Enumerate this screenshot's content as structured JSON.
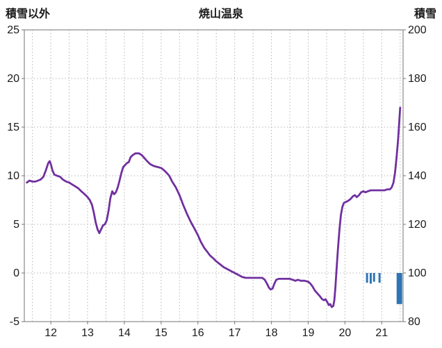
{
  "header": {
    "left_axis_title": "積雪以外",
    "title": "焼山温泉",
    "right_axis_title": "積雪"
  },
  "colors": {
    "background": "#ffffff",
    "text": "#1a1a1a",
    "grid": "#b3b3b3",
    "border": "#8a8a8a",
    "line": "#7030a0",
    "bar": "#2e75b6"
  },
  "chart_data": {
    "type": "line",
    "title": "焼山温泉",
    "left_axis": {
      "label": "積雪以外",
      "range": [
        -5,
        25
      ],
      "ticks": [
        25,
        20,
        15,
        10,
        5,
        0,
        -5
      ]
    },
    "right_axis": {
      "label": "積雪",
      "range": [
        80,
        200
      ],
      "ticks": [
        200,
        180,
        160,
        140,
        120,
        100,
        80
      ]
    },
    "x_axis": {
      "range": [
        11.28,
        21.58
      ],
      "ticks": [
        12,
        13,
        14,
        15,
        16,
        17,
        18,
        19,
        20,
        21
      ],
      "grid_step": 0.5
    },
    "grid": true,
    "series": [
      {
        "name": "observed-line",
        "axis": "left",
        "color": "#7030a0",
        "points": [
          [
            11.35,
            9.3
          ],
          [
            11.42,
            9.5
          ],
          [
            11.5,
            9.4
          ],
          [
            11.58,
            9.4
          ],
          [
            11.65,
            9.5
          ],
          [
            11.72,
            9.6
          ],
          [
            11.8,
            9.9
          ],
          [
            11.87,
            10.6
          ],
          [
            11.93,
            11.3
          ],
          [
            11.97,
            11.5
          ],
          [
            12.0,
            11.2
          ],
          [
            12.05,
            10.5
          ],
          [
            12.1,
            10.1
          ],
          [
            12.17,
            10.0
          ],
          [
            12.25,
            9.9
          ],
          [
            12.33,
            9.6
          ],
          [
            12.42,
            9.4
          ],
          [
            12.5,
            9.3
          ],
          [
            12.58,
            9.1
          ],
          [
            12.67,
            8.9
          ],
          [
            12.75,
            8.7
          ],
          [
            12.83,
            8.4
          ],
          [
            12.92,
            8.1
          ],
          [
            13.0,
            7.8
          ],
          [
            13.06,
            7.5
          ],
          [
            13.12,
            7.0
          ],
          [
            13.17,
            6.2
          ],
          [
            13.22,
            5.2
          ],
          [
            13.27,
            4.5
          ],
          [
            13.32,
            4.1
          ],
          [
            13.37,
            4.5
          ],
          [
            13.42,
            4.9
          ],
          [
            13.47,
            5.0
          ],
          [
            13.52,
            5.4
          ],
          [
            13.57,
            6.4
          ],
          [
            13.62,
            7.7
          ],
          [
            13.67,
            8.4
          ],
          [
            13.72,
            8.1
          ],
          [
            13.77,
            8.3
          ],
          [
            13.82,
            8.8
          ],
          [
            13.87,
            9.5
          ],
          [
            13.92,
            10.3
          ],
          [
            13.97,
            10.9
          ],
          [
            14.02,
            11.1
          ],
          [
            14.07,
            11.3
          ],
          [
            14.12,
            11.4
          ],
          [
            14.17,
            11.9
          ],
          [
            14.22,
            12.1
          ],
          [
            14.3,
            12.3
          ],
          [
            14.4,
            12.3
          ],
          [
            14.48,
            12.1
          ],
          [
            14.55,
            11.8
          ],
          [
            14.62,
            11.5
          ],
          [
            14.7,
            11.2
          ],
          [
            14.8,
            11.0
          ],
          [
            14.9,
            10.9
          ],
          [
            15.0,
            10.8
          ],
          [
            15.07,
            10.6
          ],
          [
            15.15,
            10.3
          ],
          [
            15.22,
            10.0
          ],
          [
            15.3,
            9.4
          ],
          [
            15.4,
            8.8
          ],
          [
            15.5,
            8.0
          ],
          [
            15.6,
            7.0
          ],
          [
            15.7,
            6.1
          ],
          [
            15.8,
            5.3
          ],
          [
            15.9,
            4.6
          ],
          [
            16.0,
            3.9
          ],
          [
            16.08,
            3.2
          ],
          [
            16.17,
            2.6
          ],
          [
            16.25,
            2.2
          ],
          [
            16.33,
            1.8
          ],
          [
            16.42,
            1.5
          ],
          [
            16.5,
            1.2
          ],
          [
            16.6,
            0.9
          ],
          [
            16.7,
            0.6
          ],
          [
            16.8,
            0.4
          ],
          [
            16.9,
            0.2
          ],
          [
            17.0,
            0.0
          ],
          [
            17.1,
            -0.2
          ],
          [
            17.2,
            -0.4
          ],
          [
            17.3,
            -0.5
          ],
          [
            17.45,
            -0.5
          ],
          [
            17.6,
            -0.5
          ],
          [
            17.75,
            -0.5
          ],
          [
            17.82,
            -0.7
          ],
          [
            17.88,
            -1.1
          ],
          [
            17.93,
            -1.5
          ],
          [
            17.98,
            -1.7
          ],
          [
            18.03,
            -1.6
          ],
          [
            18.08,
            -1.1
          ],
          [
            18.13,
            -0.7
          ],
          [
            18.2,
            -0.6
          ],
          [
            18.3,
            -0.6
          ],
          [
            18.4,
            -0.6
          ],
          [
            18.5,
            -0.6
          ],
          [
            18.58,
            -0.7
          ],
          [
            18.65,
            -0.8
          ],
          [
            18.72,
            -0.7
          ],
          [
            18.8,
            -0.8
          ],
          [
            18.9,
            -0.8
          ],
          [
            19.0,
            -0.9
          ],
          [
            19.06,
            -1.1
          ],
          [
            19.12,
            -1.4
          ],
          [
            19.18,
            -1.8
          ],
          [
            19.25,
            -2.1
          ],
          [
            19.32,
            -2.4
          ],
          [
            19.38,
            -2.7
          ],
          [
            19.43,
            -2.8
          ],
          [
            19.47,
            -2.7
          ],
          [
            19.52,
            -3.0
          ],
          [
            19.56,
            -3.3
          ],
          [
            19.6,
            -3.2
          ],
          [
            19.64,
            -3.5
          ],
          [
            19.68,
            -3.4
          ],
          [
            19.71,
            -2.8
          ],
          [
            19.74,
            -1.5
          ],
          [
            19.77,
            0.3
          ],
          [
            19.81,
            2.5
          ],
          [
            19.85,
            4.5
          ],
          [
            19.89,
            6.0
          ],
          [
            19.93,
            6.8
          ],
          [
            19.97,
            7.2
          ],
          [
            20.02,
            7.3
          ],
          [
            20.08,
            7.4
          ],
          [
            20.15,
            7.6
          ],
          [
            20.22,
            7.9
          ],
          [
            20.27,
            8.0
          ],
          [
            20.32,
            7.8
          ],
          [
            20.38,
            8.0
          ],
          [
            20.44,
            8.3
          ],
          [
            20.5,
            8.4
          ],
          [
            20.56,
            8.3
          ],
          [
            20.62,
            8.4
          ],
          [
            20.7,
            8.5
          ],
          [
            20.8,
            8.5
          ],
          [
            20.9,
            8.5
          ],
          [
            21.0,
            8.5
          ],
          [
            21.08,
            8.5
          ],
          [
            21.15,
            8.6
          ],
          [
            21.22,
            8.6
          ],
          [
            21.27,
            8.8
          ],
          [
            21.32,
            9.3
          ],
          [
            21.36,
            10.3
          ],
          [
            21.4,
            11.8
          ],
          [
            21.44,
            13.5
          ],
          [
            21.47,
            15.2
          ],
          [
            21.5,
            17.0
          ]
        ]
      }
    ],
    "bars": {
      "name": "precip-bars",
      "axis": "left",
      "color": "#2e75b6",
      "items": [
        {
          "x": 20.6,
          "top": 0,
          "bottom": -1.0,
          "width": 3
        },
        {
          "x": 20.7,
          "top": 0,
          "bottom": -1.1,
          "width": 3
        },
        {
          "x": 20.79,
          "top": 0,
          "bottom": -0.9,
          "width": 3
        },
        {
          "x": 20.94,
          "top": 0,
          "bottom": -1.0,
          "width": 3
        },
        {
          "x": 21.48,
          "top": 0,
          "bottom": -3.2,
          "width": 8
        }
      ]
    }
  }
}
